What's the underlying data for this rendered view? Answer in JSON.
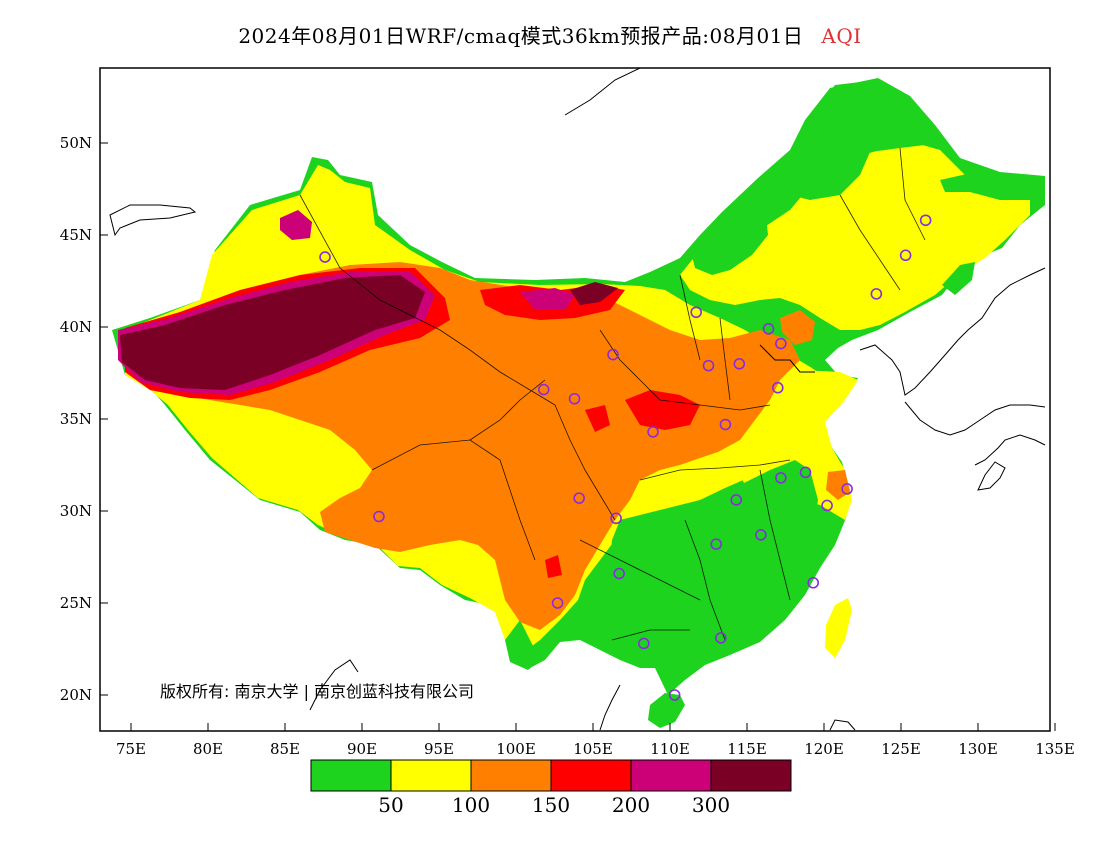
{
  "title": {
    "main": "2024年08月01日WRF/cmaq模式36km预报产品:08月01日",
    "variable": "AQI"
  },
  "axes": {
    "lon_labels": [
      "75E",
      "80E",
      "85E",
      "90E",
      "95E",
      "100E",
      "105E",
      "110E",
      "115E",
      "120E",
      "125E",
      "130E",
      "135E"
    ],
    "lat_labels": [
      "20N",
      "25N",
      "30N",
      "35N",
      "40N",
      "45N",
      "50N"
    ]
  },
  "colors": {
    "class_50": "#1ed31e",
    "class_100": "#ffff00",
    "class_150": "#ff8000",
    "class_200": "#ff0000",
    "class_300": "#cc0077",
    "class_over": "#7a0026",
    "station_marker": "#8a2be2"
  },
  "legend": {
    "colors": [
      "#1ed31e",
      "#ffff00",
      "#ff8000",
      "#ff0000",
      "#cc0077",
      "#7a0026"
    ],
    "labels": [
      "50",
      "100",
      "150",
      "200",
      "300"
    ]
  },
  "copyright": "版权所有: 南京大学 | 南京创蓝科技有限公司",
  "stations": [
    {
      "name": "urumqi",
      "lon": 87.6,
      "lat": 43.8
    },
    {
      "name": "lhasa",
      "lon": 91.1,
      "lat": 29.7
    },
    {
      "name": "xining",
      "lon": 101.8,
      "lat": 36.6
    },
    {
      "name": "lanzhou",
      "lon": 103.8,
      "lat": 36.1
    },
    {
      "name": "yinchuan",
      "lon": 106.3,
      "lat": 38.5
    },
    {
      "name": "hohhot",
      "lon": 111.7,
      "lat": 40.8
    },
    {
      "name": "taiyuan",
      "lon": 112.5,
      "lat": 37.9
    },
    {
      "name": "shijiazhuang",
      "lon": 114.5,
      "lat": 38.0
    },
    {
      "name": "beijing",
      "lon": 116.4,
      "lat": 39.9
    },
    {
      "name": "tianjin",
      "lon": 117.2,
      "lat": 39.1
    },
    {
      "name": "jinan",
      "lon": 117.0,
      "lat": 36.7
    },
    {
      "name": "zhengzhou",
      "lon": 113.6,
      "lat": 34.7
    },
    {
      "name": "xian",
      "lon": 108.9,
      "lat": 34.3
    },
    {
      "name": "chengdu",
      "lon": 104.1,
      "lat": 30.7
    },
    {
      "name": "chongqing",
      "lon": 106.5,
      "lat": 29.6
    },
    {
      "name": "wuhan",
      "lon": 114.3,
      "lat": 30.6
    },
    {
      "name": "hefei",
      "lon": 117.2,
      "lat": 31.8
    },
    {
      "name": "nanjing",
      "lon": 118.8,
      "lat": 32.1
    },
    {
      "name": "shanghai",
      "lon": 121.5,
      "lat": 31.2
    },
    {
      "name": "hangzhou",
      "lon": 120.2,
      "lat": 30.3
    },
    {
      "name": "changsha",
      "lon": 113.0,
      "lat": 28.2
    },
    {
      "name": "nanchang",
      "lon": 115.9,
      "lat": 28.7
    },
    {
      "name": "fuzhou",
      "lon": 119.3,
      "lat": 26.1
    },
    {
      "name": "guiyang",
      "lon": 106.7,
      "lat": 26.6
    },
    {
      "name": "kunming",
      "lon": 102.7,
      "lat": 25.0
    },
    {
      "name": "nanning",
      "lon": 108.3,
      "lat": 22.8
    },
    {
      "name": "guangzhou",
      "lon": 113.3,
      "lat": 23.1
    },
    {
      "name": "haikou",
      "lon": 110.3,
      "lat": 20.0
    },
    {
      "name": "shenyang",
      "lon": 123.4,
      "lat": 41.8
    },
    {
      "name": "changchun",
      "lon": 125.3,
      "lat": 43.9
    },
    {
      "name": "harbin",
      "lon": 126.6,
      "lat": 45.8
    }
  ]
}
